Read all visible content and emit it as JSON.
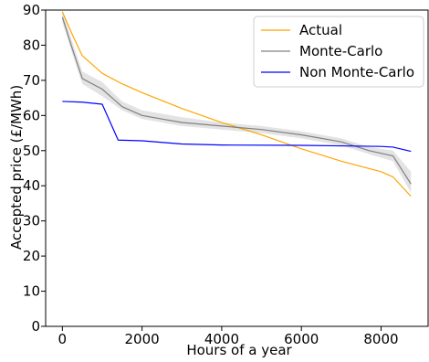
{
  "chart_data": {
    "type": "line",
    "title": "",
    "xlabel": "Hours of a year",
    "ylabel": "Accepted price (£/MWh)",
    "xlim": [
      -420,
      9180
    ],
    "ylim": [
      0,
      90
    ],
    "xticks": [
      0,
      2000,
      4000,
      6000,
      8000
    ],
    "yticks": [
      0,
      10,
      20,
      30,
      40,
      50,
      60,
      70,
      80,
      90
    ],
    "grid": false,
    "legend": "top-right",
    "series": [
      {
        "name": "Actual",
        "color": "#ffa500",
        "x": [
          0,
          250,
          500,
          1000,
          1500,
          2000,
          3000,
          4000,
          5000,
          6000,
          7000,
          8000,
          8300,
          8750
        ],
        "y": [
          89.5,
          83,
          77,
          72,
          69,
          66.5,
          62,
          58,
          54.5,
          50.5,
          47,
          44,
          42.5,
          37
        ]
      },
      {
        "name": "Monte-Carlo",
        "color": "#808080",
        "x": [
          0,
          250,
          500,
          1000,
          1500,
          2000,
          2500,
          3000,
          4000,
          5000,
          6000,
          7000,
          7700,
          8300,
          8750
        ],
        "y": [
          88,
          79,
          70.5,
          67.5,
          62.5,
          60,
          59,
          58,
          57,
          56,
          54.5,
          52.5,
          50,
          48.5,
          40.5
        ],
        "band_lower": [
          86.5,
          77.5,
          69,
          65.5,
          61.5,
          59,
          58,
          57,
          56,
          55,
          53.5,
          51.5,
          49,
          47,
          38
        ],
        "band_upper": [
          90,
          81,
          72.5,
          69.5,
          64,
          61.5,
          60.5,
          59.5,
          58,
          57,
          55.5,
          53.5,
          51,
          50,
          44
        ]
      },
      {
        "name": "Non Monte-Carlo",
        "color": "#0000ff",
        "x": [
          0,
          500,
          1000,
          1400,
          2000,
          3000,
          4000,
          6000,
          8000,
          8300,
          8750
        ],
        "y": [
          64,
          63.8,
          63.2,
          53,
          52.8,
          51.9,
          51.6,
          51.5,
          51.2,
          51,
          49.8
        ]
      }
    ]
  }
}
